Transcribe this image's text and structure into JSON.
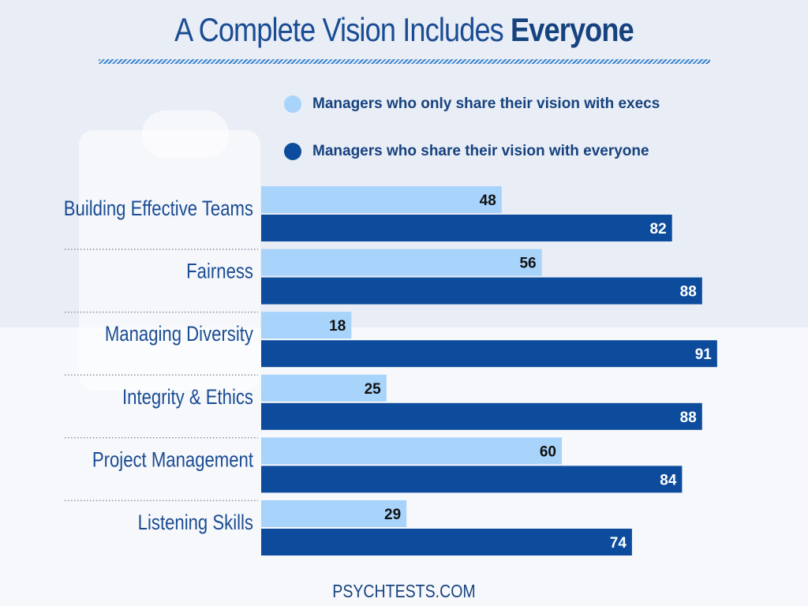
{
  "header": {
    "title_prefix": "A Complete Vision Includes ",
    "title_emphasis": "Everyone"
  },
  "colors": {
    "series_light": "#a8d3fb",
    "series_dark": "#0d4c9c",
    "label_text": "#1a4c94"
  },
  "chart_data": {
    "type": "bar",
    "orientation": "horizontal",
    "title": "A Complete Vision Includes Everyone",
    "categories": [
      "Building Effective Teams",
      "Fairness",
      "Managing Diversity",
      "Integrity & Ethics",
      "Project Management",
      "Listening Skills"
    ],
    "series": [
      {
        "name": "Managers who only share their vision with execs",
        "values": [
          48,
          56,
          18,
          25,
          60,
          29
        ]
      },
      {
        "name": "Managers who share their vision with everyone",
        "values": [
          82,
          88,
          91,
          88,
          84,
          74
        ]
      }
    ],
    "xlim": [
      0,
      100
    ],
    "legend_position": "top"
  },
  "footer": {
    "text": "PSYCHTESTS.COM"
  }
}
